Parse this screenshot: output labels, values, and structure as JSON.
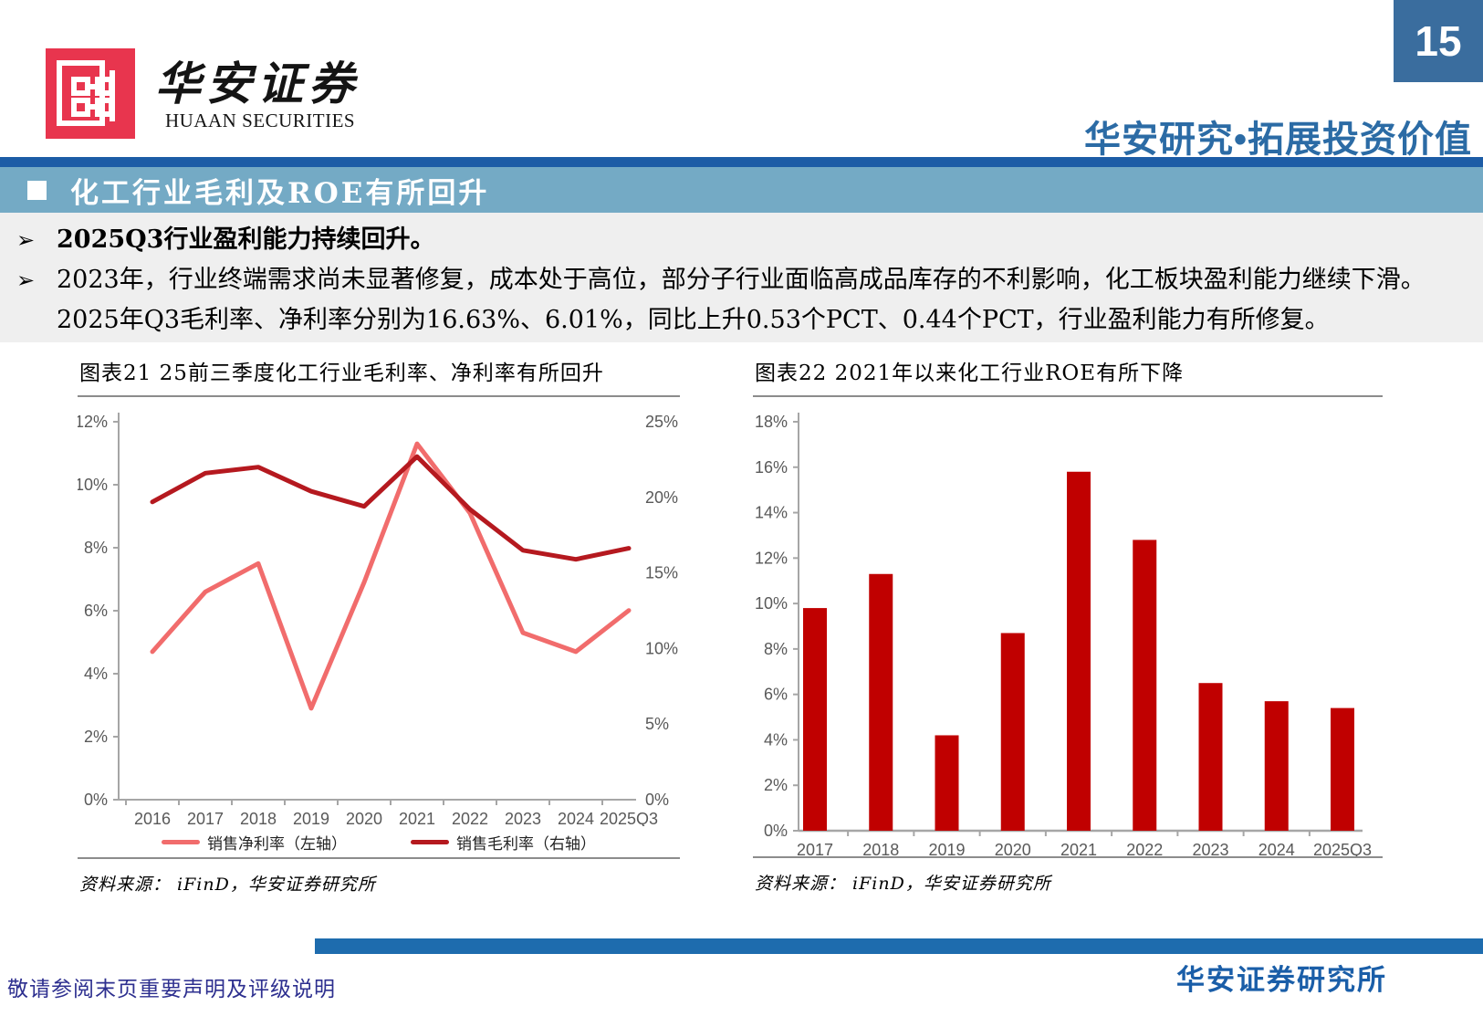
{
  "header": {
    "brand_cn": "华安证券",
    "brand_en": "HUAAN SECURITIES",
    "page_number": "15",
    "slogan": "华安研究•拓展投资价值"
  },
  "banner": {
    "title": "化工行业毛利及ROE有所回升"
  },
  "bullets": [
    {
      "marker": "➢",
      "text": "2025Q3行业盈利能力持续回升。"
    },
    {
      "marker": "➢",
      "text": "2023年，行业终端需求尚未显著修复，成本处于高位，部分子行业面临高成品库存的不利影响，化工板块盈利能力继续下滑。2025年Q3毛利率、净利率分别为16.63%、6.01%，同比上升0.53个PCT、0.44个PCT，行业盈利能力有所修复。"
    }
  ],
  "figures": {
    "left": {
      "title": "图表21  25前三季度化工行业毛利率、净利率有所回升",
      "source": "资料来源：  iFinD，华安证券研究所"
    },
    "right": {
      "title": "图表22  2021年以来化工行业ROE有所下降",
      "source": "资料来源：  iFinD，华安证券研究所"
    }
  },
  "chart_data": [
    {
      "type": "line",
      "title": "图表21 25前三季度化工行业毛利率、净利率有所回升",
      "categories": [
        "2016",
        "2017",
        "2018",
        "2019",
        "2020",
        "2021",
        "2022",
        "2023",
        "2024",
        "2025Q3"
      ],
      "series": [
        {
          "name": "销售净利率（左轴）",
          "axis": "left",
          "color": "#F16C6C",
          "values": [
            4.7,
            6.6,
            7.5,
            2.9,
            6.9,
            11.3,
            9.1,
            5.3,
            4.7,
            6.01
          ]
        },
        {
          "name": "销售毛利率（右轴）",
          "axis": "right",
          "color": "#B5191F",
          "values": [
            19.7,
            21.6,
            22.0,
            20.4,
            19.4,
            22.7,
            19.2,
            16.5,
            15.9,
            16.63
          ]
        }
      ],
      "left_axis": {
        "min": 0,
        "max": 12,
        "step": 2,
        "suffix": "%"
      },
      "right_axis": {
        "min": 0,
        "max": 25,
        "step": 5,
        "suffix": "%"
      },
      "grid": false,
      "legend_position": "bottom"
    },
    {
      "type": "bar",
      "title": "图表22 2021年以来化工行业ROE有所下降",
      "categories": [
        "2017",
        "2018",
        "2019",
        "2020",
        "2021",
        "2022",
        "2023",
        "2024",
        "2025Q3"
      ],
      "values": [
        9.8,
        11.3,
        4.2,
        8.7,
        15.8,
        12.8,
        6.5,
        5.7,
        5.4
      ],
      "ylabel": "",
      "y_axis": {
        "min": 0,
        "max": 18,
        "step": 2,
        "suffix": "%"
      },
      "bar_color": "#C00000",
      "grid": false
    }
  ],
  "footer": {
    "note": "敬请参阅末页重要声明及评级说明",
    "brand": "华安证券研究所"
  },
  "colors": {
    "divider_blue": "#1C5CA6",
    "banner_blue": "#74AAC5",
    "badge_blue": "#3A6D9E",
    "slogan_blue": "#2B6BA5",
    "footer_bar_blue": "#1E6CAE",
    "footer_note_indigo": "#2D2F8F",
    "logo_red": "#E8354E",
    "net_margin_pink": "#F16C6C",
    "gross_margin_red": "#B5191F",
    "roe_bar_red": "#C00000",
    "axis_gray": "#A6A6A6",
    "label_gray": "#595959"
  }
}
